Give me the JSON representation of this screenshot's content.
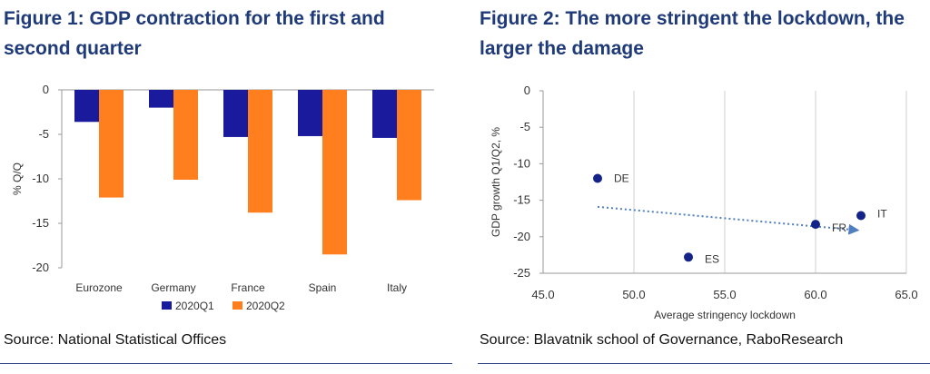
{
  "left": {
    "title": "Figure 1: GDP contraction for the first and second quarter",
    "source": "Source: National Statistical Offices"
  },
  "right": {
    "title": "Figure 2: The more stringent the lockdown, the larger the damage",
    "source": "Source: Blavatnik school of Governance, RaboResearch"
  },
  "chart_data": [
    {
      "type": "bar",
      "title": "Figure 1: GDP contraction for the first and second quarter",
      "categories": [
        "Eurozone",
        "Germany",
        "France",
        "Spain",
        "Italy"
      ],
      "series": [
        {
          "name": "2020Q1",
          "color": "#1a1a9c",
          "values": [
            -3.6,
            -2.0,
            -5.3,
            -5.2,
            -5.4
          ]
        },
        {
          "name": "2020Q2",
          "color": "#ff7f1e",
          "values": [
            -12.1,
            -10.1,
            -13.8,
            -18.5,
            -12.4
          ]
        }
      ],
      "xlabel": "",
      "ylabel": "% Q/Q",
      "ylim": [
        -20,
        0
      ],
      "yticks": [
        0,
        -5,
        -10,
        -15,
        -20
      ],
      "legend": "bottom",
      "grid": false
    },
    {
      "type": "scatter",
      "title": "Figure 2: The more stringent the lockdown, the larger the damage",
      "points": [
        {
          "label": "DE",
          "x": 48.0,
          "y": -12.0
        },
        {
          "label": "ES",
          "x": 53.0,
          "y": -22.8
        },
        {
          "label": "FR",
          "x": 60.0,
          "y": -18.3
        },
        {
          "label": "IT",
          "x": 62.5,
          "y": -17.1
        }
      ],
      "trend": {
        "x": [
          48.0,
          62.3
        ],
        "y": [
          -15.9,
          -19.1
        ],
        "style": "dotted arrow"
      },
      "point_color": "#13238a",
      "trend_color": "#4f7fbf",
      "xlabel": "Average stringency lockdown",
      "ylabel": "GDP growth Q1/Q2, %",
      "xlim": [
        45,
        65
      ],
      "ylim": [
        -25,
        0
      ],
      "xticks": [
        "45.0",
        "50.0",
        "55.0",
        "60.0",
        "65.0"
      ],
      "yticks": [
        0,
        -5,
        -10,
        -15,
        -20,
        -25
      ],
      "grid": "vertical",
      "legend": "none"
    }
  ]
}
